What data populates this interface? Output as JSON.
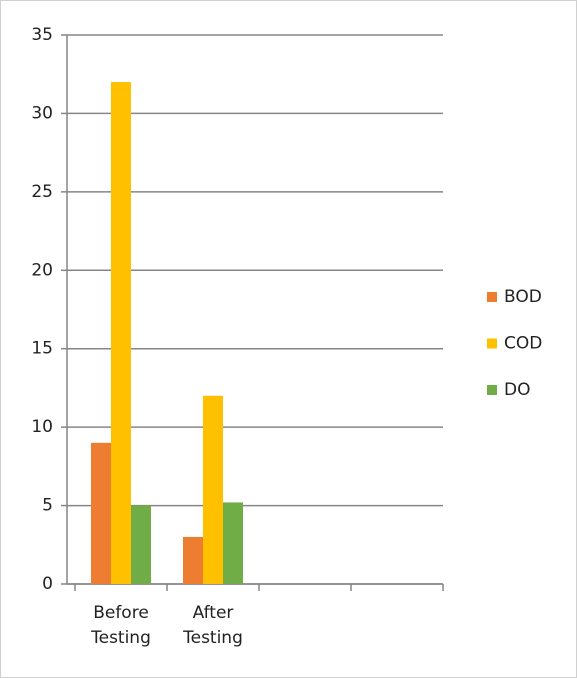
{
  "chart_data": {
    "type": "bar",
    "categories": [
      "Before Testing",
      "After Testing",
      null,
      null
    ],
    "series": [
      {
        "name": "BOD",
        "color": "#ed7d31",
        "values": [
          9,
          3,
          null,
          null
        ]
      },
      {
        "name": "COD",
        "color": "#ffc000",
        "values": [
          32,
          12,
          null,
          null
        ]
      },
      {
        "name": "DO",
        "color": "#70ad47",
        "values": [
          5,
          5.2,
          null,
          null
        ]
      }
    ],
    "ylim": [
      0,
      35
    ],
    "yticks": [
      0,
      5,
      10,
      15,
      20,
      25,
      30,
      35
    ],
    "grid": true,
    "legend": "right"
  }
}
